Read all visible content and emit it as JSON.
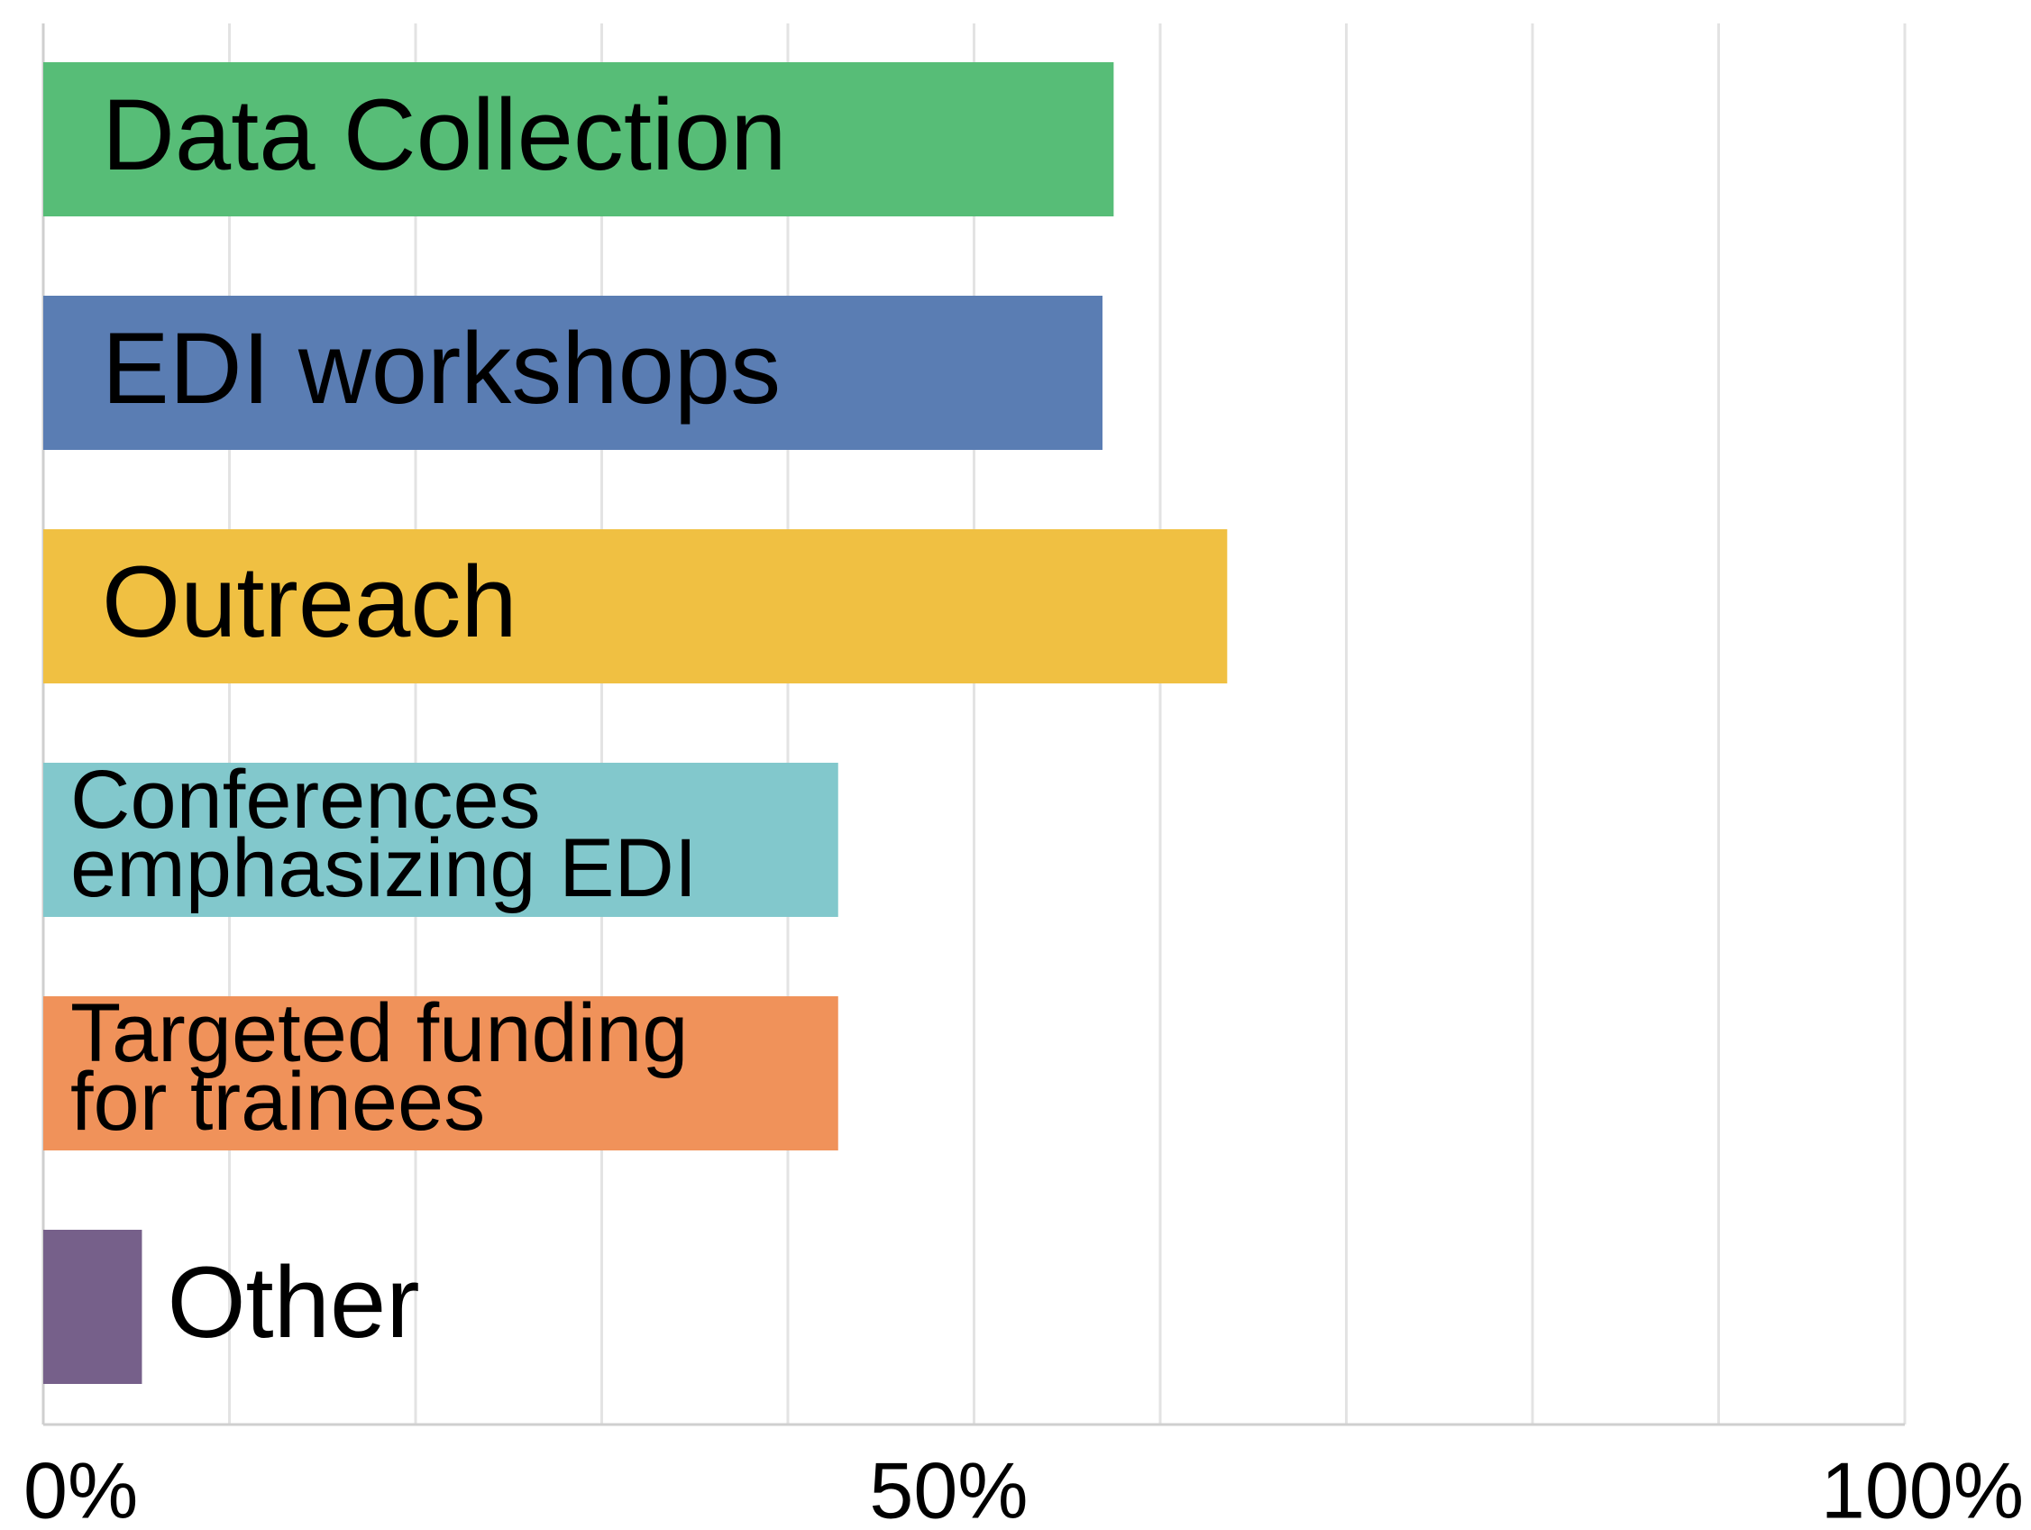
{
  "chart_data": {
    "type": "hbar",
    "categories": [
      "Data Collection",
      "EDI workshops",
      "Outreach",
      [
        "Conferences",
        "emphasizing EDI"
      ],
      [
        "Targeted funding",
        "for trainees"
      ],
      "Other"
    ],
    "values": [
      57.5,
      56.9,
      63.6,
      42.7,
      42.7,
      5.3
    ],
    "colors": [
      "#57bd77",
      "#5a7db3",
      "#f0c042",
      "#82c8cc",
      "#f0925a",
      "#76608a"
    ],
    "xlim": [
      0,
      100
    ],
    "xticks": [
      {
        "value": 0,
        "label": "0%"
      },
      {
        "value": 50,
        "label": "50%"
      },
      {
        "value": 100,
        "label": "100%"
      }
    ],
    "x_gridlines": [
      10,
      20,
      30,
      40,
      50,
      60,
      70,
      80,
      90,
      100
    ],
    "grid": true
  }
}
